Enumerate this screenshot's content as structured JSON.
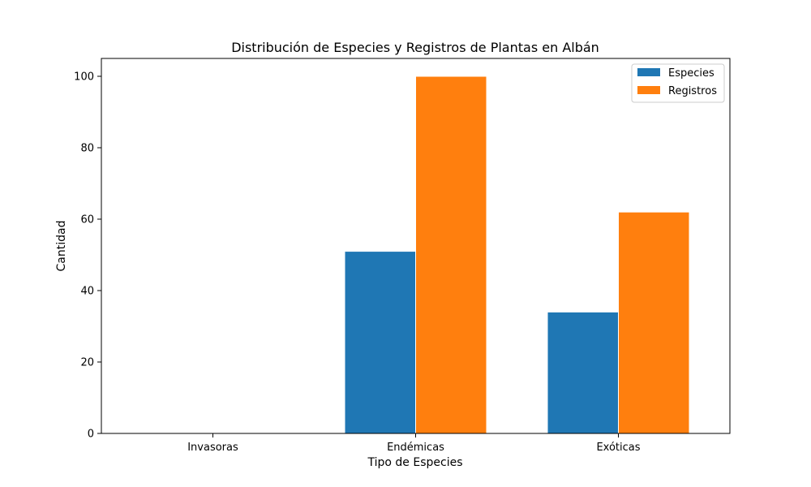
{
  "chart_data": {
    "type": "bar",
    "title": "Distribución de Especies y Registros de Plantas en Albán",
    "xlabel": "Tipo de Especies",
    "ylabel": "Cantidad",
    "categories": [
      "Invasoras",
      "Endémicas",
      "Exóticas"
    ],
    "series": [
      {
        "name": "Especies",
        "color": "#1f77b4",
        "values": [
          0,
          51,
          34
        ]
      },
      {
        "name": "Registros",
        "color": "#ff7f0e",
        "values": [
          0,
          100,
          62
        ]
      }
    ],
    "ylim": [
      0,
      105
    ],
    "yticks": [
      0,
      20,
      40,
      60,
      80,
      100
    ],
    "grid": false,
    "legend": "top-right"
  }
}
